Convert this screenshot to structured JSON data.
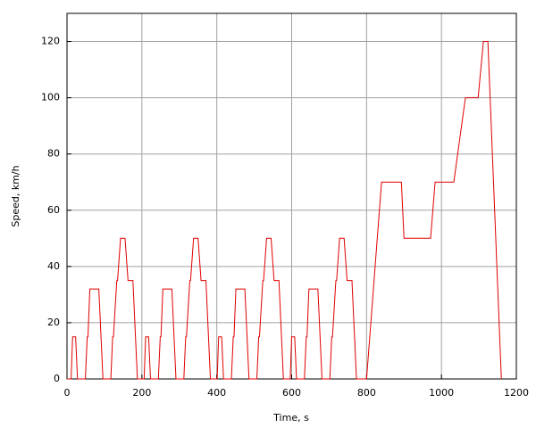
{
  "chart_data": {
    "type": "line",
    "x_label": "Time, s",
    "y_label": "Speed, km/h",
    "x": [
      0,
      11,
      15,
      23,
      28,
      49,
      54,
      56,
      61,
      85,
      96,
      117,
      122,
      124,
      133,
      135,
      143,
      155,
      163,
      176,
      188,
      195,
      206,
      210,
      218,
      223,
      244,
      249,
      251,
      256,
      280,
      291,
      312,
      317,
      319,
      328,
      330,
      338,
      350,
      358,
      371,
      383,
      390,
      401,
      405,
      413,
      418,
      439,
      444,
      446,
      451,
      475,
      486,
      507,
      512,
      514,
      523,
      525,
      533,
      545,
      553,
      566,
      578,
      585,
      596,
      600,
      608,
      613,
      634,
      639,
      641,
      646,
      670,
      681,
      702,
      707,
      709,
      718,
      720,
      728,
      740,
      748,
      761,
      773,
      780,
      800,
      840,
      893,
      900,
      971,
      983,
      1033,
      1064,
      1098,
      1112,
      1124,
      1160
    ],
    "values": [
      0,
      0,
      15,
      15,
      0,
      0,
      15,
      15,
      32,
      32,
      0,
      0,
      15,
      15,
      35,
      35,
      50,
      50,
      35,
      35,
      0,
      0,
      0,
      15,
      15,
      0,
      0,
      15,
      15,
      32,
      32,
      0,
      0,
      15,
      15,
      35,
      35,
      50,
      50,
      35,
      35,
      0,
      0,
      0,
      15,
      15,
      0,
      0,
      15,
      15,
      32,
      32,
      0,
      0,
      15,
      15,
      35,
      35,
      50,
      50,
      35,
      35,
      0,
      0,
      0,
      15,
      15,
      0,
      0,
      15,
      15,
      32,
      32,
      0,
      0,
      15,
      15,
      35,
      35,
      50,
      50,
      35,
      35,
      0,
      0,
      0,
      70,
      70,
      50,
      50,
      70,
      70,
      100,
      100,
      120,
      120,
      0
    ],
    "color": "#e00000",
    "xlim": [
      0,
      1200
    ],
    "xticks": [
      0,
      200,
      400,
      600,
      800,
      1000,
      1200
    ],
    "ylim": [
      0,
      130
    ],
    "yticks": [
      0,
      20,
      40,
      60,
      80,
      100,
      120
    ],
    "grid": true
  }
}
